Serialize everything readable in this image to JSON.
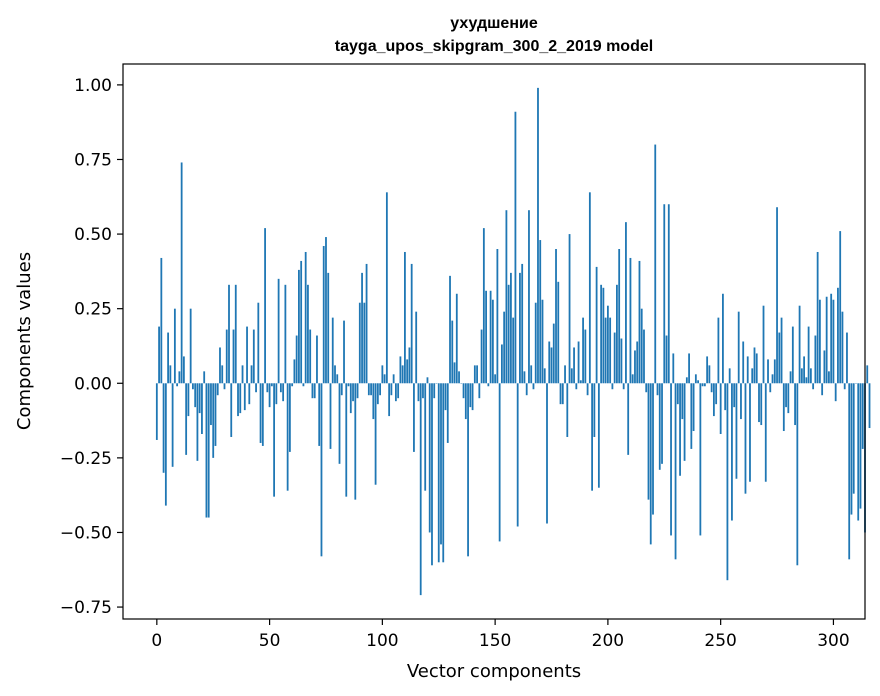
{
  "chart_data": {
    "type": "bar",
    "title_line1": "ухудшение",
    "title_line2": "tayga_upos_skipgram_300_2_2019 model",
    "xlabel": "Vector components",
    "ylabel": "Components values",
    "xlim": [
      -15,
      314
    ],
    "ylim": [
      -0.79,
      1.07
    ],
    "xticks": [
      0,
      50,
      100,
      150,
      200,
      250,
      300
    ],
    "xtick_labels": [
      "0",
      "50",
      "100",
      "150",
      "200",
      "250",
      "300"
    ],
    "yticks": [
      -0.75,
      -0.5,
      -0.25,
      0.0,
      0.25,
      0.5,
      0.75,
      1.0
    ],
    "ytick_labels": [
      "−0.75",
      "−0.50",
      "−0.25",
      "0.00",
      "0.25",
      "0.50",
      "0.75",
      "1.00"
    ],
    "grid": false,
    "color": "#1f77b4",
    "values": [
      -0.19,
      0.19,
      0.42,
      -0.3,
      -0.41,
      0.17,
      0.06,
      -0.28,
      0.25,
      -0.01,
      0.04,
      0.74,
      0.09,
      -0.24,
      -0.11,
      0.25,
      -0.02,
      -0.08,
      -0.26,
      -0.1,
      -0.17,
      0.04,
      -0.45,
      -0.45,
      -0.14,
      -0.25,
      -0.21,
      -0.04,
      0.12,
      0.06,
      -0.02,
      0.18,
      0.33,
      -0.18,
      0.18,
      0.33,
      -0.11,
      -0.1,
      0.06,
      -0.09,
      0.19,
      -0.07,
      0.06,
      0.18,
      -0.03,
      0.27,
      -0.2,
      -0.21,
      0.52,
      -0.03,
      -0.08,
      -0.01,
      -0.38,
      -0.07,
      0.35,
      -0.03,
      -0.06,
      0.33,
      -0.36,
      -0.23,
      -0.01,
      0.08,
      0.16,
      0.38,
      0.41,
      -0.01,
      0.44,
      0.33,
      0.18,
      -0.05,
      -0.05,
      0.16,
      -0.21,
      -0.58,
      0.46,
      0.49,
      0.37,
      -0.22,
      0.22,
      0.06,
      0.03,
      -0.27,
      -0.04,
      0.21,
      -0.38,
      -0.01,
      -0.1,
      -0.06,
      -0.39,
      -0.05,
      0.27,
      0.37,
      0.27,
      0.4,
      -0.04,
      -0.04,
      -0.12,
      -0.34,
      -0.07,
      -0.04,
      0.06,
      0.03,
      0.64,
      -0.11,
      -0.04,
      0.03,
      -0.06,
      -0.05,
      0.09,
      0.06,
      0.44,
      0.08,
      0.12,
      0.4,
      -0.23,
      0.24,
      -0.06,
      -0.71,
      -0.05,
      -0.36,
      0.02,
      -0.5,
      -0.61,
      -0.05,
      0.0,
      -0.6,
      -0.54,
      -0.6,
      -0.09,
      -0.2,
      0.36,
      0.21,
      0.07,
      0.3,
      0.04,
      0.0,
      -0.05,
      -0.12,
      -0.58,
      -0.08,
      -0.09,
      0.06,
      0.06,
      -0.05,
      0.18,
      0.52,
      0.31,
      -0.01,
      0.31,
      0.28,
      0.03,
      0.45,
      -0.53,
      0.13,
      0.24,
      0.58,
      0.33,
      0.37,
      0.22,
      0.91,
      -0.48,
      0.37,
      0.4,
      0.04,
      -0.04,
      0.58,
      0.06,
      -0.02,
      0.27,
      0.99,
      0.48,
      0.28,
      0.05,
      -0.47,
      0.14,
      0.12,
      0.2,
      0.45,
      0.34,
      -0.07,
      -0.07,
      0.06,
      -0.18,
      0.5,
      0.05,
      0.12,
      -0.02,
      0.14,
      0.01,
      0.22,
      0.18,
      -0.04,
      0.64,
      -0.36,
      -0.18,
      0.39,
      -0.35,
      0.33,
      0.32,
      0.22,
      0.26,
      0.22,
      -0.02,
      0.17,
      0.33,
      0.45,
      0.15,
      -0.02,
      0.54,
      -0.24,
      0.42,
      0.03,
      0.11,
      0.14,
      0.41,
      0.25,
      0.18,
      -0.03,
      -0.39,
      -0.54,
      -0.44,
      0.8,
      -0.04,
      -0.29,
      -0.27,
      0.6,
      0.16,
      0.6,
      -0.51,
      0.1,
      -0.59,
      -0.07,
      -0.31,
      -0.12,
      -0.26,
      0.02,
      0.1,
      -0.22,
      -0.16,
      0.03,
      0.01,
      -0.51,
      -0.01,
      -0.01,
      0.09,
      0.06,
      -0.03,
      -0.11,
      -0.07,
      0.22,
      -0.17,
      0.3,
      -0.09,
      -0.66,
      0.05,
      -0.46,
      -0.08,
      -0.32,
      0.24,
      -0.12,
      0.14,
      -0.37,
      0.09,
      -0.33,
      0.05,
      0.12,
      0.1,
      -0.13,
      -0.14,
      0.26,
      -0.33,
      0.08,
      -0.03,
      0.03,
      0.08,
      0.59,
      0.17,
      0.22,
      -0.16,
      -0.08,
      -0.1,
      0.04,
      0.19,
      -0.14,
      -0.61,
      0.26,
      0.05,
      0.09,
      0.02,
      0.19,
      0.05,
      -0.02,
      0.16,
      0.44,
      0.28,
      -0.04,
      0.11,
      0.29,
      0.04,
      0.3,
      0.28,
      -0.06,
      0.32,
      0.51,
      0.24,
      -0.02,
      0.17,
      -0.59,
      -0.44,
      -0.37,
      0.0,
      -0.46,
      -0.42,
      -0.22,
      -0.5,
      0.06,
      -0.15
    ]
  }
}
